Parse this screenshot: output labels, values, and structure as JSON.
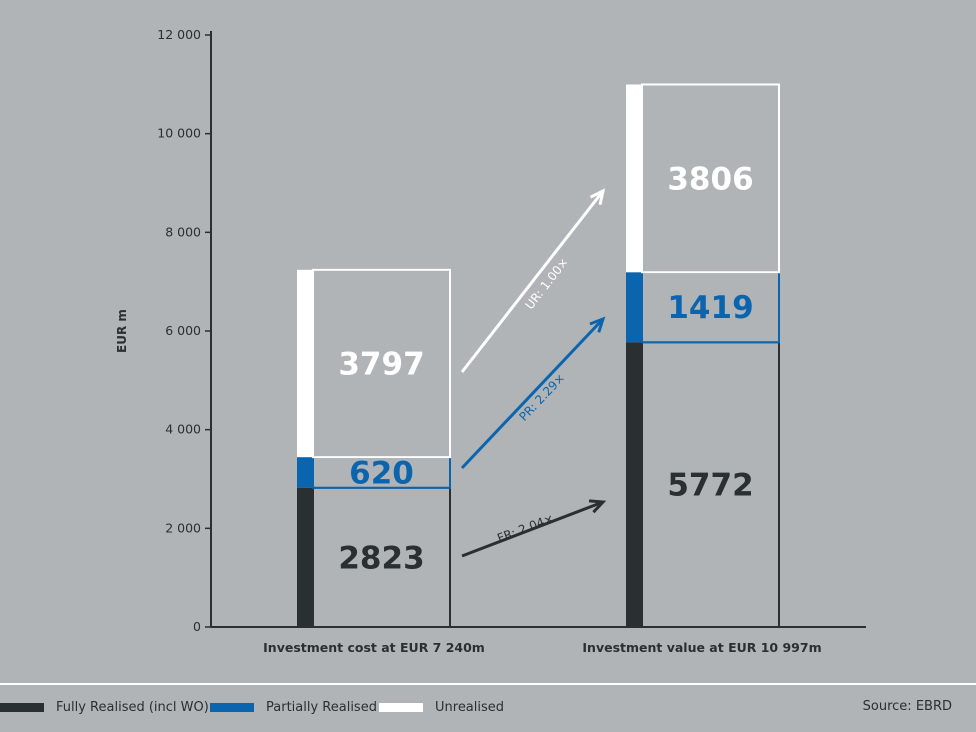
{
  "chart_data": {
    "type": "bar",
    "stacked": true,
    "ylabel": "EUR m",
    "ylim": [
      0,
      12000
    ],
    "yticks": [
      0,
      2000,
      4000,
      6000,
      8000,
      10000,
      12000
    ],
    "ytick_labels": [
      "0",
      "2 000",
      "4 000",
      "6 000",
      "8 000",
      "10 000",
      "12 000"
    ],
    "categories": [
      "Investment cost at EUR 7 240m",
      "Investment value at EUR 10 997m"
    ],
    "series": [
      {
        "name": "Fully Realised (incl WO)",
        "values": [
          2823,
          5772
        ],
        "labels": [
          "2823",
          "5772"
        ],
        "color": "#2a2f31",
        "label_color": "#2a2f31"
      },
      {
        "name": "Partially Realised",
        "values": [
          620,
          1419
        ],
        "labels": [
          "620",
          "1419"
        ],
        "color": "#0b65ae",
        "label_color": "#0b65ae"
      },
      {
        "name": "Unrealised",
        "values": [
          3797,
          3806
        ],
        "labels": [
          "3797",
          "3806"
        ],
        "color": "#ffffff",
        "label_color": "#ffffff"
      }
    ],
    "annotations": [
      {
        "text": "FR: 2.04×",
        "color": "#2a2f31"
      },
      {
        "text": "PR: 2.29×",
        "color": "#0b65ae"
      },
      {
        "text": "UR: 1.00×",
        "color": "#ffffff"
      }
    ],
    "grid": false,
    "legend_position": "bottom-left"
  },
  "legend": {
    "items": [
      {
        "label": "Fully Realised (incl WO)",
        "color": "#2a2f31"
      },
      {
        "label": "Partially Realised",
        "color": "#0b65ae"
      },
      {
        "label": "Unrealised",
        "color": "#ffffff"
      }
    ]
  },
  "source": "Source: EBRD",
  "colors": {
    "background": "#b1b4b6",
    "axis": "#2a2f31",
    "box_fill": "#b1b4b6"
  }
}
